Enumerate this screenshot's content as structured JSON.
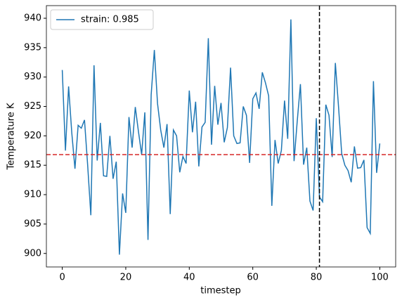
{
  "chart_data": {
    "type": "line",
    "xlabel": "timestep",
    "ylabel": "Temperature K",
    "x": [
      0,
      1,
      2,
      3,
      4,
      5,
      6,
      7,
      8,
      9,
      10,
      11,
      12,
      13,
      14,
      15,
      16,
      17,
      18,
      19,
      20,
      21,
      22,
      23,
      24,
      25,
      26,
      27,
      28,
      29,
      30,
      31,
      32,
      33,
      34,
      35,
      36,
      37,
      38,
      39,
      40,
      41,
      42,
      43,
      44,
      45,
      46,
      47,
      48,
      49,
      50,
      51,
      52,
      53,
      54,
      55,
      56,
      57,
      58,
      59,
      60,
      61,
      62,
      63,
      64,
      65,
      66,
      67,
      68,
      69,
      70,
      71,
      72,
      73,
      74,
      75,
      76,
      77,
      78,
      79,
      80,
      81,
      82,
      83,
      84,
      85,
      86,
      87,
      88,
      89,
      90,
      91,
      92,
      93,
      94,
      95,
      96,
      97,
      98,
      99,
      100
    ],
    "series": [
      {
        "name": "strain: 0.985",
        "color": "#1f77b4",
        "values": [
          931.2,
          917.5,
          928.4,
          920.5,
          914.4,
          921.8,
          921.3,
          922.7,
          915,
          906.5,
          932,
          915.8,
          922.2,
          913.2,
          913.1,
          920,
          912.7,
          915.6,
          899.8,
          910.2,
          906.9,
          923.2,
          918,
          924.9,
          920.7,
          916.8,
          924,
          902.3,
          927,
          934.6,
          925.5,
          921,
          918,
          922,
          906.7,
          921,
          920,
          913.8,
          916.5,
          915.3,
          927.7,
          920.6,
          925.8,
          914.8,
          921.5,
          922.3,
          936.6,
          918.5,
          928.5,
          921.9,
          925.6,
          918.9,
          921.4,
          931.6,
          920,
          918.7,
          918.8,
          925,
          923.5,
          915.4,
          926.3,
          927.3,
          924.6,
          930.8,
          929,
          926.8,
          908.1,
          919.3,
          915.3,
          917.5,
          926,
          919.5,
          939.8,
          915.7,
          922.5,
          928.8,
          915.1,
          918,
          908.9,
          907.3,
          923,
          909.6,
          908.8,
          925.3,
          923.5,
          916.4,
          932.4,
          925,
          917,
          915,
          914.1,
          912.1,
          918.2,
          914.5,
          914.6,
          915.9,
          904.4,
          903.4,
          929.3,
          913.7,
          918.7
        ]
      }
    ],
    "hline": {
      "value": 916.8,
      "color": "#d62728"
    },
    "vline": {
      "value": 81,
      "color": "#000000"
    },
    "xlim": [
      -5,
      105
    ],
    "xticks": [
      0,
      20,
      40,
      60,
      80,
      100
    ],
    "ylim": [
      897.7,
      942.15
    ],
    "yticks": [
      900,
      905,
      910,
      915,
      920,
      925,
      930,
      935,
      940
    ],
    "legend": "upper-left"
  }
}
